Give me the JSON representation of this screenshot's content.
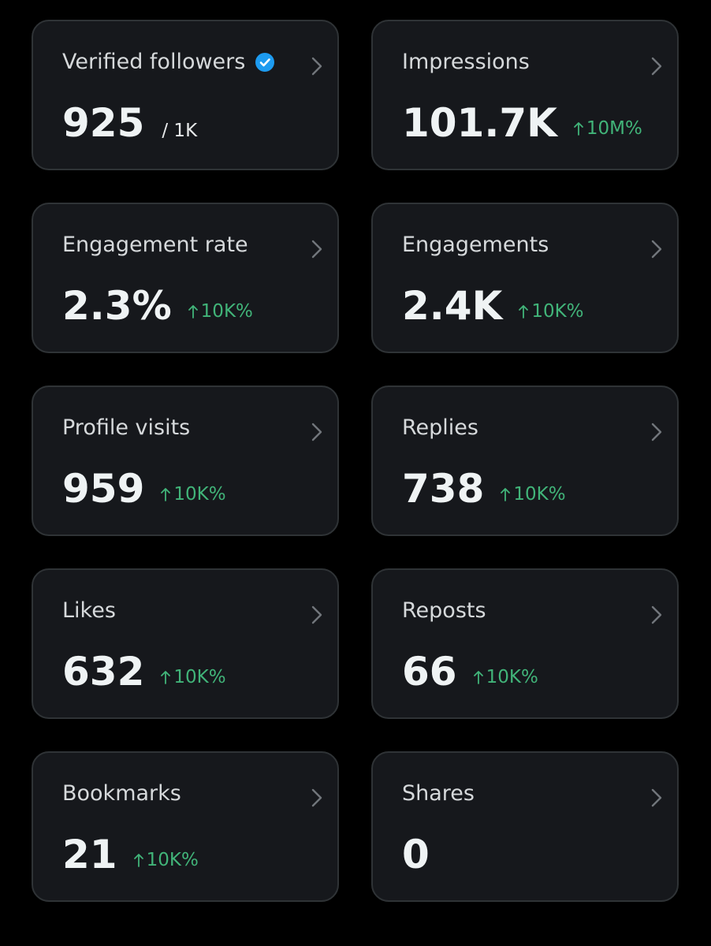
{
  "cards": [
    {
      "title": "Verified followers",
      "verified": true,
      "value": "925",
      "total": "/ 1K"
    },
    {
      "title": "Impressions",
      "value": "101.7K",
      "change": "10M%"
    },
    {
      "title": "Engagement rate",
      "value": "2.3%",
      "change": "10K%"
    },
    {
      "title": "Engagements",
      "value": "2.4K",
      "change": "10K%"
    },
    {
      "title": "Profile visits",
      "value": "959",
      "change": "10K%"
    },
    {
      "title": "Replies",
      "value": "738",
      "change": "10K%"
    },
    {
      "title": "Likes",
      "value": "632",
      "change": "10K%"
    },
    {
      "title": "Reposts",
      "value": "66",
      "change": "10K%"
    },
    {
      "title": "Bookmarks",
      "value": "21",
      "change": "10K%"
    },
    {
      "title": "Shares",
      "value": "0"
    }
  ]
}
